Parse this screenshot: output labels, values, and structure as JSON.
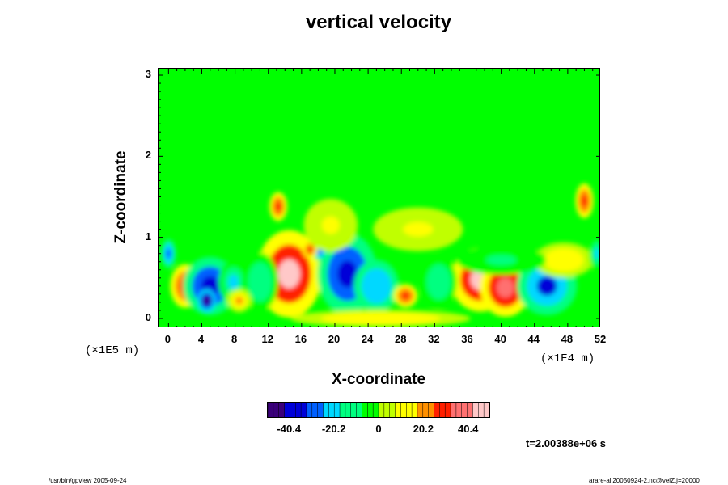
{
  "chart_data": {
    "type": "heatmap",
    "title": "vertical velocity",
    "xlabel": "X-coordinate",
    "ylabel": "Z-coordinate",
    "x_ticks": [
      "0",
      "4",
      "8",
      "12",
      "16",
      "20",
      "24",
      "28",
      "32",
      "36",
      "40",
      "44",
      "48",
      "52"
    ],
    "y_ticks": [
      "0",
      "1",
      "2",
      "3"
    ],
    "xlim": [
      -1.2,
      52
    ],
    "ylim": [
      -0.12,
      3.08
    ],
    "x_scale_label": "(×1E4 m)",
    "y_scale_label": "(×1E5 m)",
    "colorbar": {
      "ticks": [
        "-40.4",
        "-20.2",
        "0",
        "20.2",
        "40.4"
      ],
      "range": [
        -50,
        50
      ],
      "colors": [
        "#3a007a",
        "#0000d8",
        "#0060ff",
        "#00d8ff",
        "#00ff80",
        "#00ff00",
        "#c0ff00",
        "#ffff00",
        "#ff9000",
        "#ff2000",
        "#ff7070",
        "#ffc8c8"
      ]
    },
    "features": [
      {
        "x": 14.5,
        "z": 0.55,
        "value": 46,
        "sx": 2.2,
        "sz": 0.3
      },
      {
        "x": 37.5,
        "z": 0.48,
        "value": 42,
        "sx": 2.0,
        "sz": 0.22
      },
      {
        "x": 40.5,
        "z": 0.38,
        "value": 40,
        "sx": 1.7,
        "sz": 0.2
      },
      {
        "x": 2.0,
        "z": 0.4,
        "value": 26,
        "sx": 1.0,
        "sz": 0.15
      },
      {
        "x": 5.0,
        "z": 0.4,
        "value": -40,
        "sx": 1.8,
        "sz": 0.2
      },
      {
        "x": 4.6,
        "z": 0.22,
        "value": -55,
        "sx": 0.6,
        "sz": 0.08
      },
      {
        "x": 7.8,
        "z": 0.45,
        "value": -18,
        "sx": 1.0,
        "sz": 0.15
      },
      {
        "x": 21.5,
        "z": 0.55,
        "value": -38,
        "sx": 2.0,
        "sz": 0.28
      },
      {
        "x": 25.0,
        "z": 0.4,
        "value": -25,
        "sx": 1.5,
        "sz": 0.18
      },
      {
        "x": 45.5,
        "z": 0.4,
        "value": -35,
        "sx": 2.0,
        "sz": 0.2
      },
      {
        "x": 32.5,
        "z": 0.45,
        "value": -15,
        "sx": 1.2,
        "sz": 0.18
      },
      {
        "x": 11.0,
        "z": 0.45,
        "value": -12,
        "sx": 1.2,
        "sz": 0.2
      },
      {
        "x": 0.0,
        "z": 0.8,
        "value": -30,
        "sx": 0.5,
        "sz": 0.1
      },
      {
        "x": 13.2,
        "z": 1.38,
        "value": 30,
        "sx": 0.6,
        "sz": 0.1
      },
      {
        "x": 18.2,
        "z": 0.82,
        "value": -30,
        "sx": 0.5,
        "sz": 0.06
      },
      {
        "x": 17.0,
        "z": 0.85,
        "value": 25,
        "sx": 0.5,
        "sz": 0.06
      },
      {
        "x": 28.5,
        "z": 0.28,
        "value": 25,
        "sx": 0.8,
        "sz": 0.08
      },
      {
        "x": 8.5,
        "z": 0.22,
        "value": 20,
        "sx": 0.8,
        "sz": 0.08
      },
      {
        "x": 50.0,
        "z": 1.45,
        "value": 25,
        "sx": 0.6,
        "sz": 0.12
      },
      {
        "x": 30.0,
        "z": 1.1,
        "value": 10,
        "sx": 3.0,
        "sz": 0.15
      },
      {
        "x": 47.5,
        "z": 0.72,
        "value": 12,
        "sx": 2.0,
        "sz": 0.12
      },
      {
        "x": 19.5,
        "z": 1.15,
        "value": 10,
        "sx": 1.8,
        "sz": 0.18
      },
      {
        "x": 40.0,
        "z": 0.72,
        "value": -10,
        "sx": 3.0,
        "sz": 0.1
      },
      {
        "x": 51.5,
        "z": 0.8,
        "value": -20,
        "sx": 0.5,
        "sz": 0.12
      },
      {
        "x": 25.5,
        "z": 0.0,
        "value": 15,
        "sx": 6.0,
        "sz": 0.06
      }
    ]
  },
  "time_label": "t=2.00388e+06 s",
  "footer_left": "/usr/bin/gpview 2005-09-24",
  "footer_right": "arare-all20050924-2.nc@velZ,j=20000"
}
